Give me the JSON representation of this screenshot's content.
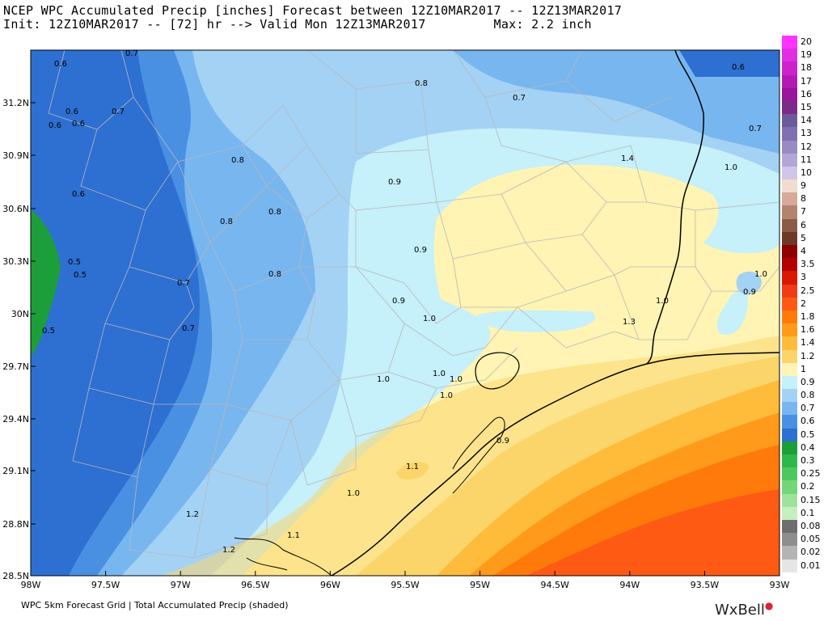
{
  "header": {
    "line1": "NCEP WPC Accumulated Precip [inches] Forecast between 12Z10MAR2017 -- 12Z13MAR2017",
    "line2": "Init: 12Z10MAR2017 -- [72] hr --> Valid Mon 12Z13MAR2017         Max: 2.2 inch"
  },
  "axes": {
    "lat_labels": [
      "31.2N",
      "30.9N",
      "30.6N",
      "30.3N",
      "30N",
      "29.7N",
      "29.4N",
      "29.1N",
      "28.8N",
      "28.5N"
    ],
    "lon_labels": [
      "98W",
      "97.5W",
      "97W",
      "96.5W",
      "96W",
      "95.5W",
      "95W",
      "94.5W",
      "94W",
      "93.5W",
      "93W"
    ]
  },
  "contour_labels": [
    "0.7",
    "0.6",
    "0.6",
    "0.6",
    "0.6",
    "0.7",
    "0.6",
    "0.5",
    "0.5",
    "0.5",
    "0.7",
    "0.7",
    "0.8",
    "0.8",
    "0.8",
    "0.8",
    "0.8",
    "0.7",
    "0.6",
    "0.7",
    "0.9",
    "0.9",
    "0.9",
    "1.0",
    "1.0",
    "1.0",
    "1.0",
    "1.0",
    "1.0",
    "1.1",
    "1.2",
    "1.2",
    "1.1",
    "0.9",
    "1.4",
    "1.3",
    "1.0",
    "1.0",
    "1.0",
    "0.9",
    "1.0",
    "1.0"
  ],
  "legend": {
    "items": [
      {
        "label": "20",
        "color": "#ff33ff"
      },
      {
        "label": "19",
        "color": "#e02ee0"
      },
      {
        "label": "18",
        "color": "#cc22cc"
      },
      {
        "label": "17",
        "color": "#b31ab3"
      },
      {
        "label": "16",
        "color": "#991599"
      },
      {
        "label": "15",
        "color": "#7a2b8a"
      },
      {
        "label": "14",
        "color": "#6a5a9a"
      },
      {
        "label": "13",
        "color": "#8070b0"
      },
      {
        "label": "12",
        "color": "#9a8ac4"
      },
      {
        "label": "11",
        "color": "#b3a6d6"
      },
      {
        "label": "10",
        "color": "#cfc6e8"
      },
      {
        "label": "9",
        "color": "#f2dcd0"
      },
      {
        "label": "8",
        "color": "#d6aa96"
      },
      {
        "label": "7",
        "color": "#b3836e"
      },
      {
        "label": "6",
        "color": "#8a5c48"
      },
      {
        "label": "5",
        "color": "#6e3a28"
      },
      {
        "label": "4",
        "color": "#8c0000"
      },
      {
        "label": "3.5",
        "color": "#b30000"
      },
      {
        "label": "3",
        "color": "#d91a00"
      },
      {
        "label": "2.5",
        "color": "#f03c14"
      },
      {
        "label": "2",
        "color": "#ff5a14"
      },
      {
        "label": "1.8",
        "color": "#ff7a0a"
      },
      {
        "label": "1.6",
        "color": "#ff9a1a"
      },
      {
        "label": "1.4",
        "color": "#ffbb3a"
      },
      {
        "label": "1.2",
        "color": "#fbd56a"
      },
      {
        "label": "1",
        "color": "#fff4b3"
      },
      {
        "label": "0.9",
        "color": "#c6f0fa"
      },
      {
        "label": "0.8",
        "color": "#a3d2f5"
      },
      {
        "label": "0.7",
        "color": "#78b6f0"
      },
      {
        "label": "0.6",
        "color": "#4a90e2"
      },
      {
        "label": "0.5",
        "color": "#2e6fd2"
      },
      {
        "label": "0.4",
        "color": "#1c9e3a"
      },
      {
        "label": "0.3",
        "color": "#2fb84a"
      },
      {
        "label": "0.25",
        "color": "#4ec85e"
      },
      {
        "label": "0.2",
        "color": "#74d67a"
      },
      {
        "label": "0.15",
        "color": "#9ee39c"
      },
      {
        "label": "0.1",
        "color": "#c4f0c0"
      },
      {
        "label": "0.08",
        "color": "#6e6e6e"
      },
      {
        "label": "0.05",
        "color": "#8e8e8e"
      },
      {
        "label": "0.02",
        "color": "#b4b4b4"
      },
      {
        "label": "0.01",
        "color": "#e6e6e6"
      }
    ]
  },
  "footer": {
    "caption": "WPC 5km Forecast Grid | Total Accumulated Precip (shaded)",
    "brand": "WxBell"
  }
}
